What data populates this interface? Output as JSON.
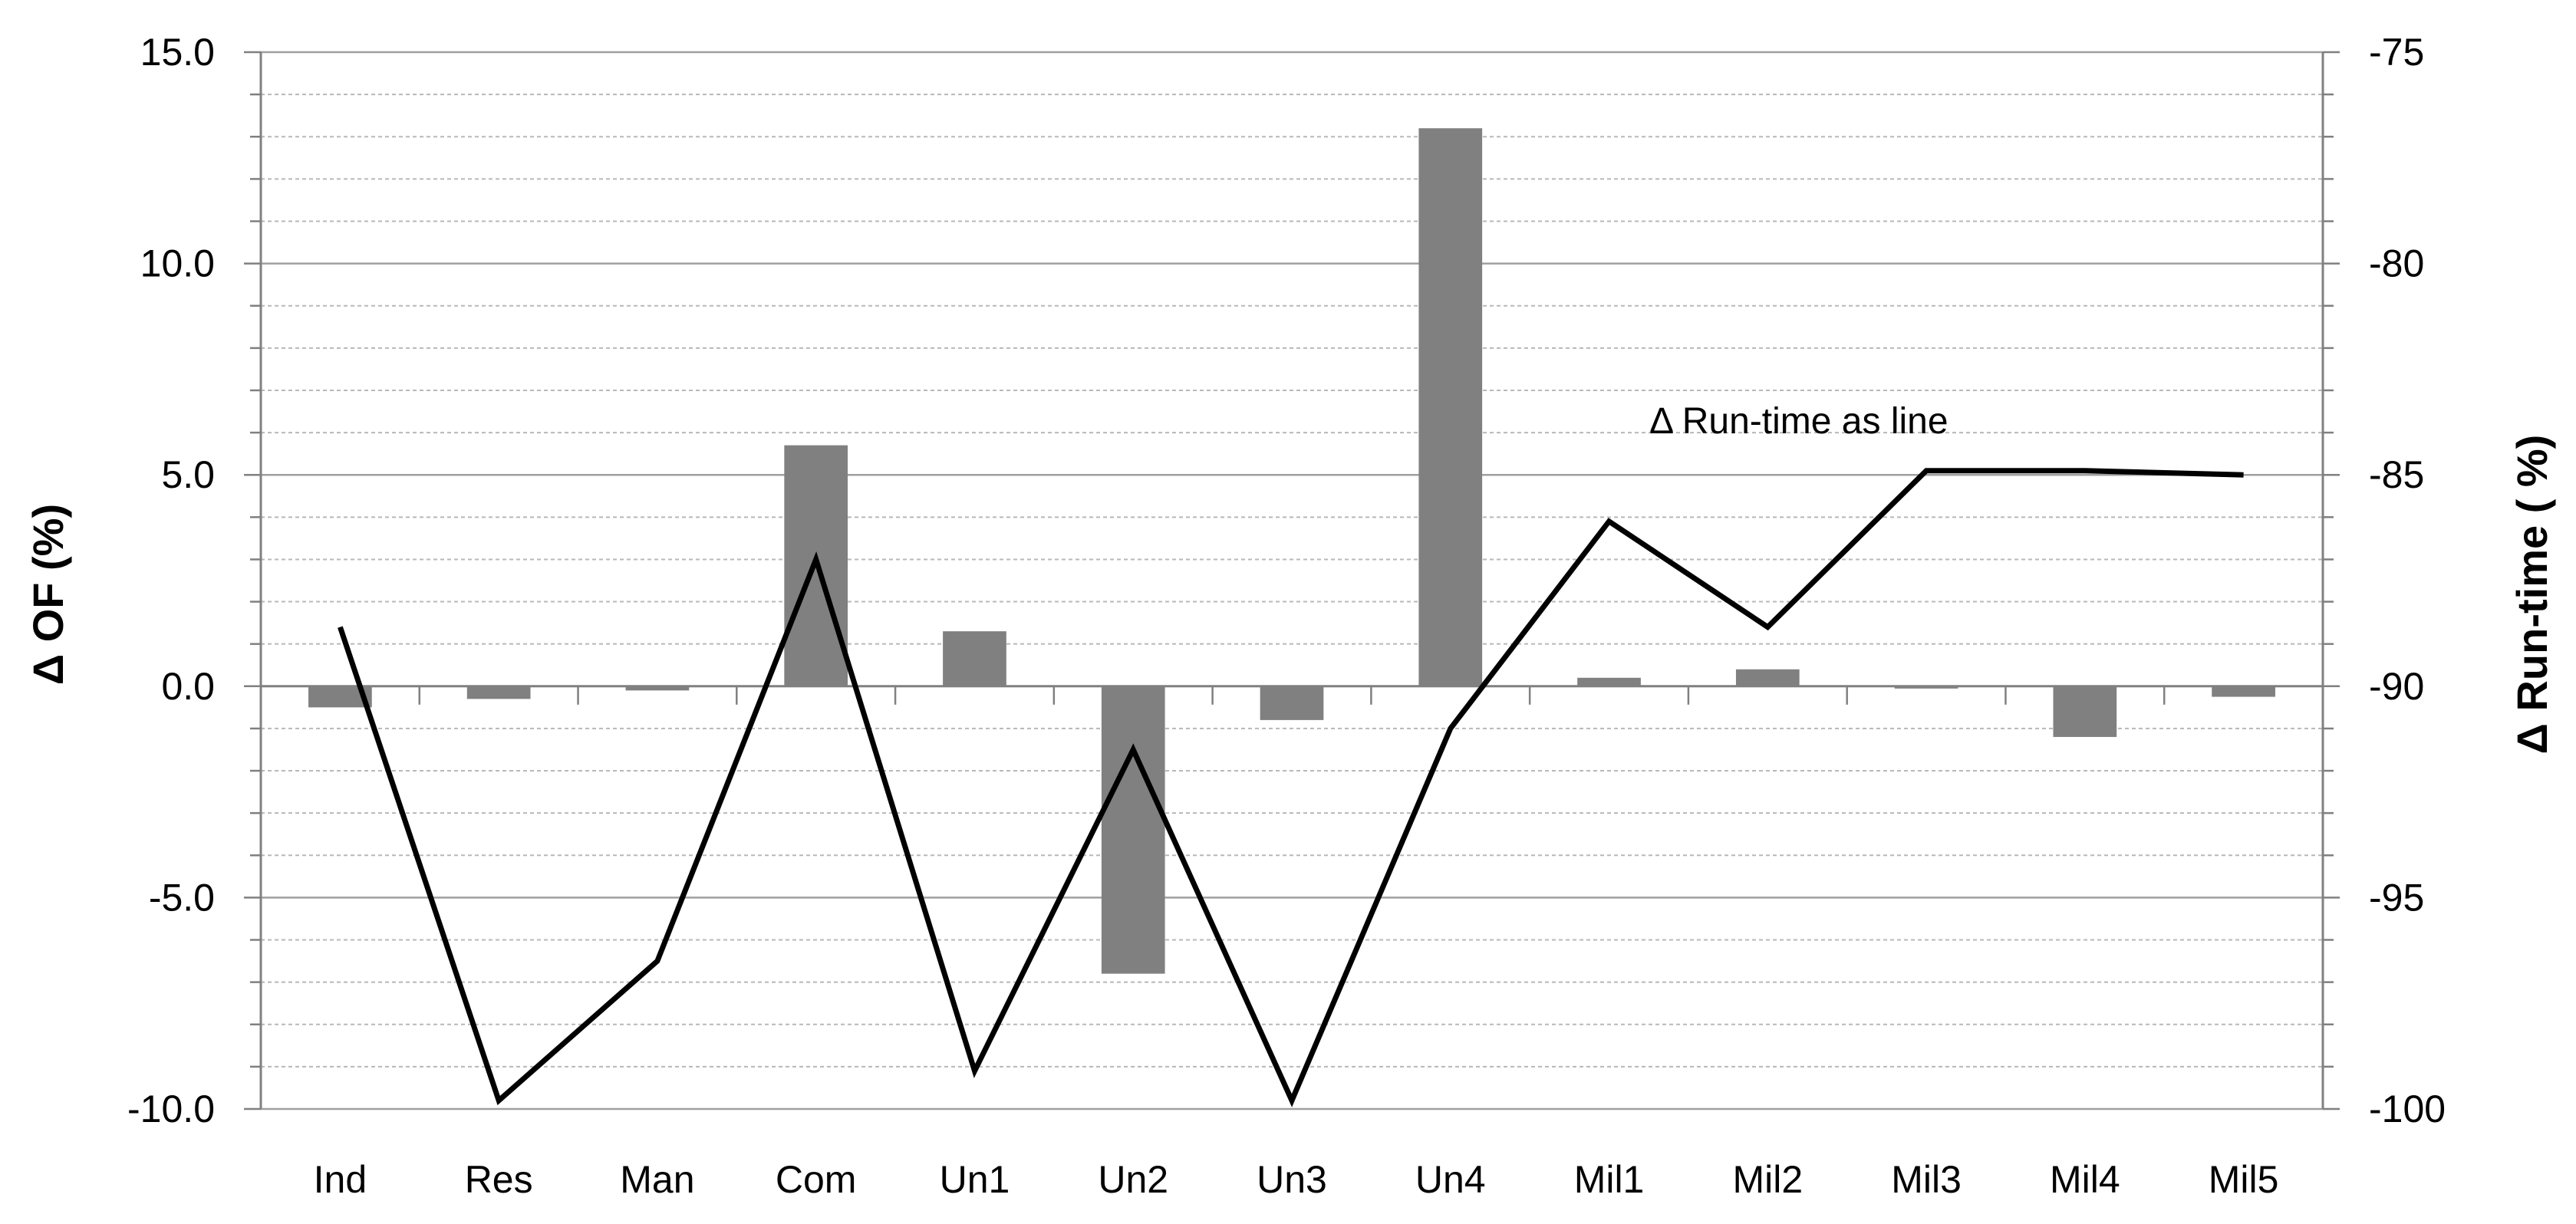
{
  "chart_data": {
    "type": "bar",
    "categories": [
      "Ind",
      "Res",
      "Man",
      "Com",
      "Un1",
      "Un2",
      "Un3",
      "Un4",
      "Mil1",
      "Mil2",
      "Mil3",
      "Mil4",
      "Mil5"
    ],
    "series": [
      {
        "chart_type": "bar",
        "axis": "left",
        "values": [
          -0.5,
          -0.3,
          -0.1,
          5.7,
          1.3,
          -6.8,
          -0.8,
          13.2,
          0.2,
          0.4,
          -0.05,
          -1.2,
          -0.25
        ],
        "color": "#808080"
      },
      {
        "chart_type": "line",
        "axis": "right",
        "values": [
          -88.6,
          -99.8,
          -96.5,
          -87.0,
          -99.1,
          -91.5,
          -99.8,
          -91.0,
          -86.1,
          -88.6,
          -84.9,
          -84.9,
          -85.0
        ],
        "color": "#000000"
      }
    ],
    "ylabel": "Δ OF (%)",
    "y2label": "Δ Run-time  ( %)",
    "ylim": [
      -10,
      15
    ],
    "y2lim": [
      -100,
      -75
    ],
    "yticks": [
      "15.0",
      "10.0",
      "5.0",
      "0.0",
      "-5.0",
      "-10.0"
    ],
    "y2ticks": [
      "-75",
      "-80",
      "-85",
      "-90",
      "-95",
      "-100"
    ],
    "annotation": "Δ Run-time as line",
    "grid": true
  }
}
